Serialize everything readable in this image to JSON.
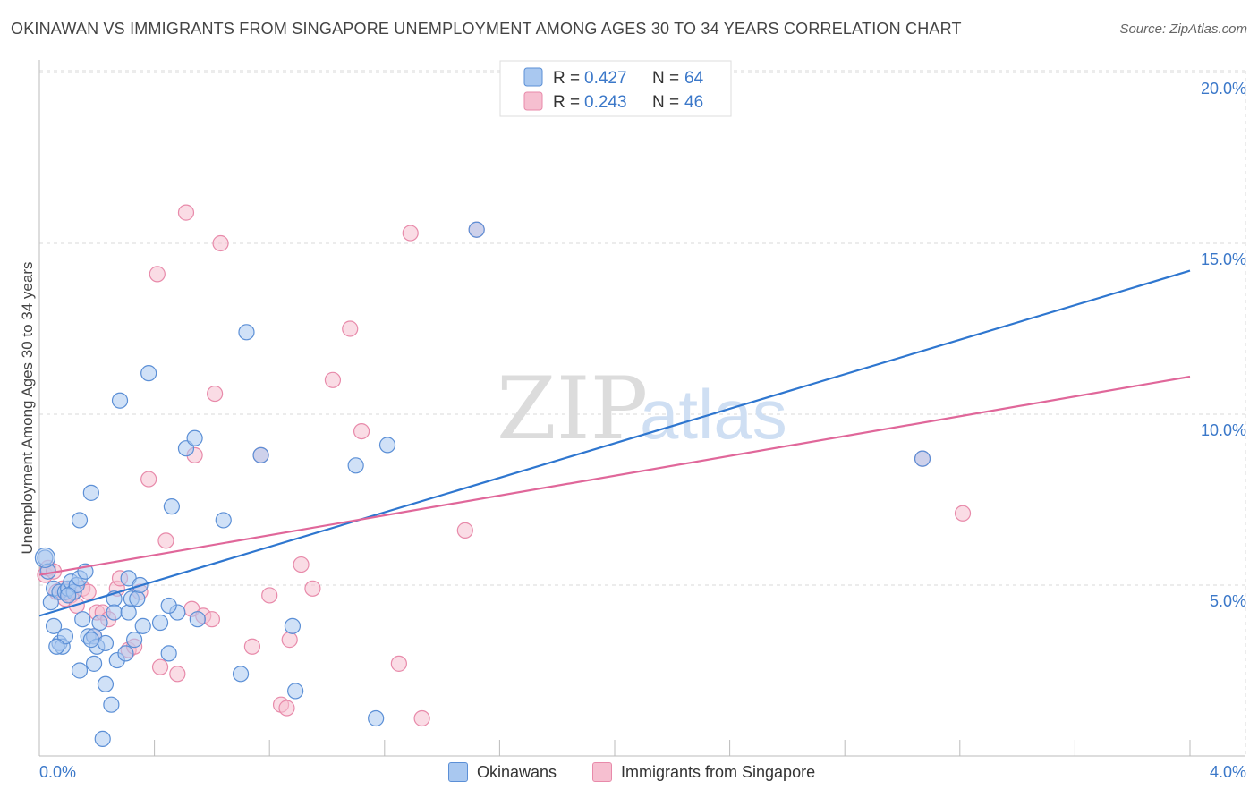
{
  "title": "OKINAWAN VS IMMIGRANTS FROM SINGAPORE UNEMPLOYMENT AMONG AGES 30 TO 34 YEARS CORRELATION CHART",
  "source": "Source: ZipAtlas.com",
  "watermark": {
    "zip": "ZIP",
    "atlas": "atlas"
  },
  "colors": {
    "blue_fill": "#a9c8f0",
    "blue_stroke": "#5b8fd6",
    "blue_line": "#2e76cf",
    "pink_fill": "#f6bfd0",
    "pink_stroke": "#e88aaa",
    "pink_line": "#e0679a",
    "accent_text": "#3b78c9",
    "grid": "#d9d9d9"
  },
  "legend": {
    "rows": [
      {
        "r_label": "R = ",
        "r_value": "0.427",
        "n_label": "N = ",
        "n_value": "64"
      },
      {
        "r_label": "R = ",
        "r_value": "0.243",
        "n_label": "N = ",
        "n_value": "46"
      }
    ]
  },
  "bottom_legend": [
    "Okinawans",
    "Immigrants from Singapore"
  ],
  "chart_data": {
    "type": "scatter",
    "title": "OKINAWAN VS IMMIGRANTS FROM SINGAPORE UNEMPLOYMENT AMONG AGES 30 TO 34 YEARS CORRELATION CHART",
    "xlabel": "",
    "ylabel": "Unemployment Among Ages 30 to 34 years",
    "xlim": [
      0,
      4.0
    ],
    "ylim": [
      0,
      20.5
    ],
    "x_tick_labels": [
      "0.0%",
      "4.0%"
    ],
    "y_ticks": [
      5,
      10,
      15,
      20
    ],
    "y_tick_labels": [
      "5.0%",
      "10.0%",
      "15.0%",
      "20.0%"
    ],
    "grid": true,
    "series": [
      {
        "name": "Okinawans",
        "r": 0.427,
        "n": 64,
        "trend": {
          "x": [
            0.0,
            4.0
          ],
          "y": [
            4.1,
            14.2
          ]
        },
        "points": [
          [
            0.02,
            5.8
          ],
          [
            0.03,
            5.4
          ],
          [
            0.04,
            4.5
          ],
          [
            0.05,
            4.9
          ],
          [
            0.05,
            3.8
          ],
          [
            0.07,
            4.8
          ],
          [
            0.07,
            3.3
          ],
          [
            0.08,
            3.2
          ],
          [
            0.09,
            4.8
          ],
          [
            0.09,
            3.5
          ],
          [
            0.1,
            4.9
          ],
          [
            0.11,
            5.1
          ],
          [
            0.12,
            4.8
          ],
          [
            0.13,
            5.0
          ],
          [
            0.14,
            5.2
          ],
          [
            0.14,
            6.9
          ],
          [
            0.14,
            2.5
          ],
          [
            0.15,
            4.0
          ],
          [
            0.16,
            5.4
          ],
          [
            0.17,
            3.5
          ],
          [
            0.18,
            7.7
          ],
          [
            0.19,
            2.7
          ],
          [
            0.19,
            3.5
          ],
          [
            0.2,
            3.2
          ],
          [
            0.21,
            3.9
          ],
          [
            0.23,
            2.1
          ],
          [
            0.23,
            3.3
          ],
          [
            0.25,
            1.5
          ],
          [
            0.26,
            4.6
          ],
          [
            0.26,
            4.2
          ],
          [
            0.27,
            2.8
          ],
          [
            0.28,
            10.4
          ],
          [
            0.3,
            3.0
          ],
          [
            0.31,
            4.2
          ],
          [
            0.31,
            5.2
          ],
          [
            0.32,
            4.6
          ],
          [
            0.33,
            3.4
          ],
          [
            0.34,
            4.6
          ],
          [
            0.36,
            3.8
          ],
          [
            0.38,
            11.2
          ],
          [
            0.42,
            3.9
          ],
          [
            0.45,
            3.0
          ],
          [
            0.46,
            7.3
          ],
          [
            0.48,
            4.2
          ],
          [
            0.51,
            9.0
          ],
          [
            0.54,
            9.3
          ],
          [
            0.55,
            4.0
          ],
          [
            0.64,
            6.9
          ],
          [
            0.7,
            2.4
          ],
          [
            0.72,
            12.4
          ],
          [
            0.77,
            8.8
          ],
          [
            0.88,
            3.8
          ],
          [
            0.89,
            1.9
          ],
          [
            1.1,
            8.5
          ],
          [
            1.17,
            1.1
          ],
          [
            1.21,
            9.1
          ],
          [
            1.52,
            15.4
          ],
          [
            0.22,
            0.5
          ],
          [
            0.06,
            3.2
          ],
          [
            0.1,
            4.7
          ],
          [
            0.35,
            5.0
          ],
          [
            0.45,
            4.4
          ],
          [
            3.07,
            8.7
          ],
          [
            0.18,
            3.4
          ]
        ]
      },
      {
        "name": "Immigrants from Singapore",
        "r": 0.243,
        "n": 46,
        "trend": {
          "x": [
            0.0,
            4.0
          ],
          "y": [
            5.3,
            11.1
          ]
        },
        "points": [
          [
            0.02,
            5.3
          ],
          [
            0.03,
            5.5
          ],
          [
            0.05,
            5.4
          ],
          [
            0.06,
            4.8
          ],
          [
            0.08,
            4.9
          ],
          [
            0.09,
            4.6
          ],
          [
            0.1,
            4.8
          ],
          [
            0.11,
            4.7
          ],
          [
            0.13,
            4.4
          ],
          [
            0.15,
            4.9
          ],
          [
            0.17,
            4.8
          ],
          [
            0.19,
            3.5
          ],
          [
            0.2,
            4.2
          ],
          [
            0.22,
            4.2
          ],
          [
            0.24,
            4.0
          ],
          [
            0.27,
            4.9
          ],
          [
            0.28,
            5.2
          ],
          [
            0.31,
            3.1
          ],
          [
            0.33,
            3.2
          ],
          [
            0.35,
            4.8
          ],
          [
            0.38,
            8.1
          ],
          [
            0.41,
            14.1
          ],
          [
            0.42,
            2.6
          ],
          [
            0.44,
            6.3
          ],
          [
            0.48,
            2.4
          ],
          [
            0.51,
            15.9
          ],
          [
            0.53,
            4.3
          ],
          [
            0.54,
            8.8
          ],
          [
            0.57,
            4.1
          ],
          [
            0.6,
            4.0
          ],
          [
            0.61,
            10.6
          ],
          [
            0.63,
            15.0
          ],
          [
            0.74,
            3.2
          ],
          [
            0.77,
            8.8
          ],
          [
            0.8,
            4.7
          ],
          [
            0.84,
            1.5
          ],
          [
            0.86,
            1.4
          ],
          [
            0.87,
            3.4
          ],
          [
            0.91,
            5.6
          ],
          [
            0.95,
            4.9
          ],
          [
            1.02,
            11.0
          ],
          [
            1.08,
            12.5
          ],
          [
            1.12,
            9.5
          ],
          [
            1.25,
            2.7
          ],
          [
            1.29,
            15.3
          ],
          [
            1.33,
            1.1
          ]
        ]
      }
    ],
    "extra_pink_points": [
      [
        1.48,
        6.6
      ],
      [
        1.52,
        15.4
      ],
      [
        3.07,
        8.7
      ],
      [
        3.21,
        7.1
      ]
    ]
  }
}
